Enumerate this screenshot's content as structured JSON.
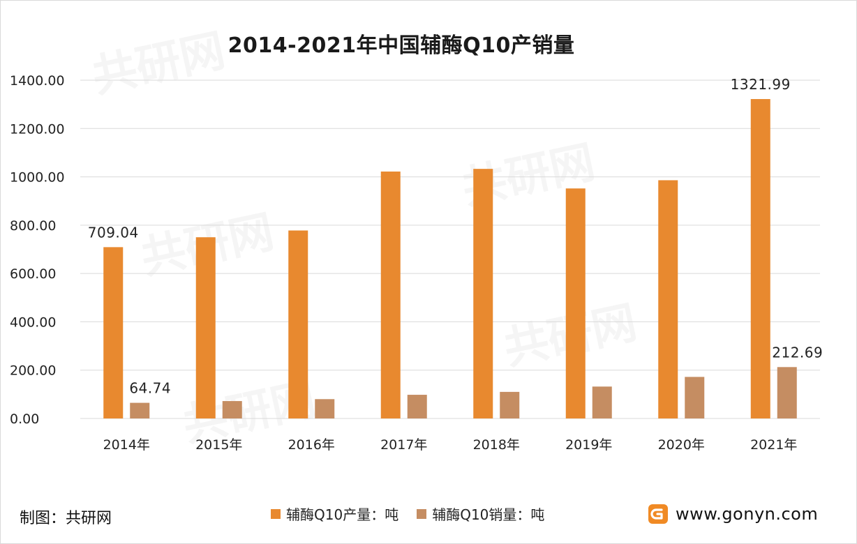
{
  "source_label": "制图：共研网",
  "brand": {
    "url": "www.gonyn.com"
  },
  "colors": {
    "production": "#e8892f",
    "sales": "#c58d62",
    "grid": "#d9d9d9"
  },
  "chart_data": {
    "type": "bar",
    "title": "2014-2021年中国辅酶Q10产销量",
    "categories": [
      "2014年",
      "2015年",
      "2016年",
      "2017年",
      "2018年",
      "2019年",
      "2020年",
      "2021年"
    ],
    "series": [
      {
        "name": "辅酶Q10产量：吨",
        "values": [
          709.04,
          750,
          778,
          1022,
          1033,
          952,
          986,
          1321.99
        ]
      },
      {
        "name": "辅酶Q10销量：吨",
        "values": [
          64.74,
          72,
          80,
          98,
          110,
          132,
          172,
          212.69
        ]
      }
    ],
    "data_labels": [
      {
        "series": 0,
        "index": 0,
        "text": "709.04"
      },
      {
        "series": 1,
        "index": 0,
        "text": "64.74"
      },
      {
        "series": 0,
        "index": 7,
        "text": "1321.99"
      },
      {
        "series": 1,
        "index": 7,
        "text": "212.69"
      }
    ],
    "yticks": [
      "0.00",
      "200.00",
      "400.00",
      "600.00",
      "800.00",
      "1000.00",
      "1200.00",
      "1400.00"
    ],
    "ylim": [
      0,
      1400
    ],
    "grid": true,
    "legend_position": "bottom"
  }
}
